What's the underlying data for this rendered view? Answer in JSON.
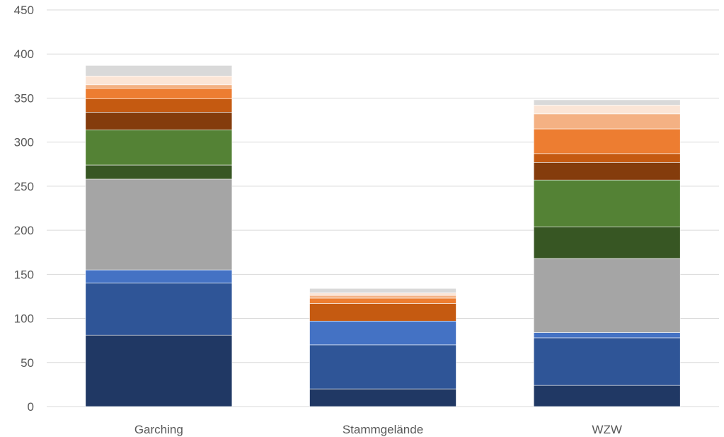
{
  "chart_data": {
    "type": "bar",
    "stacked": true,
    "categories": [
      "Garching",
      "Stammgelände",
      "WZW"
    ],
    "ylim": [
      0,
      450
    ],
    "yticks": [
      0,
      50,
      100,
      150,
      200,
      250,
      300,
      350,
      400,
      450
    ],
    "grid": true,
    "legend": "none",
    "series": [
      {
        "color": "#203864",
        "values": [
          81,
          20,
          24
        ]
      },
      {
        "color": "#2f5597",
        "values": [
          59,
          50,
          54
        ]
      },
      {
        "color": "#4472c4",
        "values": [
          15,
          27,
          6
        ]
      },
      {
        "color": "#a5a5a5",
        "values": [
          103,
          0,
          84
        ]
      },
      {
        "color": "#375623",
        "values": [
          16,
          0,
          36
        ]
      },
      {
        "color": "#548235",
        "values": [
          40,
          0,
          53
        ]
      },
      {
        "color": "#843c0c",
        "values": [
          20,
          0,
          20
        ]
      },
      {
        "color": "#c55a11",
        "values": [
          15,
          20,
          10
        ]
      },
      {
        "color": "#ed7d31",
        "values": [
          12,
          6,
          28
        ]
      },
      {
        "color": "#f4b183",
        "values": [
          4,
          3,
          17
        ]
      },
      {
        "color": "#fbe5d6",
        "values": [
          10,
          3,
          10
        ]
      },
      {
        "color": "#d9d9d9",
        "values": [
          12,
          5,
          6
        ]
      }
    ]
  }
}
